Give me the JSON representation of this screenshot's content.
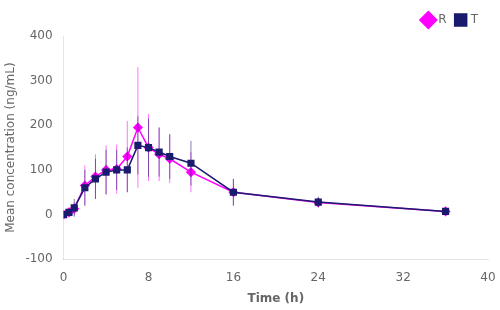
{
  "chart_data": {
    "type": "line",
    "x": [
      0,
      0.5,
      1,
      2,
      3,
      4,
      5,
      6,
      7,
      8,
      9,
      10,
      12,
      16,
      24,
      36
    ],
    "series": [
      {
        "name": "R",
        "color": "#ff00ff",
        "marker": "diamond",
        "line_style": "solid",
        "values": [
          0,
          5,
          13,
          65,
          85,
          100,
          102,
          130,
          195,
          150,
          135,
          125,
          95,
          50,
          27,
          7
        ],
        "error": [
          0,
          5,
          15,
          45,
          50,
          55,
          55,
          80,
          135,
          75,
          60,
          55,
          45,
          30,
          10,
          4
        ]
      },
      {
        "name": "T",
        "color": "#1a1a6e",
        "marker": "square",
        "line_style": "solid",
        "values": [
          0,
          5,
          15,
          60,
          80,
          95,
          100,
          100,
          155,
          150,
          140,
          130,
          115,
          50,
          28,
          7
        ],
        "error": [
          0,
          5,
          20,
          40,
          45,
          50,
          45,
          50,
          65,
          65,
          55,
          50,
          50,
          30,
          12,
          4
        ]
      }
    ],
    "xlabel": "Time (h)",
    "ylabel": "Mean concentration (ng/mL)",
    "xlim": [
      0,
      40
    ],
    "xticks": [
      0,
      8,
      16,
      24,
      32,
      40
    ],
    "ylim": [
      -100,
      400
    ],
    "yticks": [
      -100,
      0,
      100,
      200,
      300,
      400
    ],
    "grid": false,
    "legend": "upper right"
  }
}
